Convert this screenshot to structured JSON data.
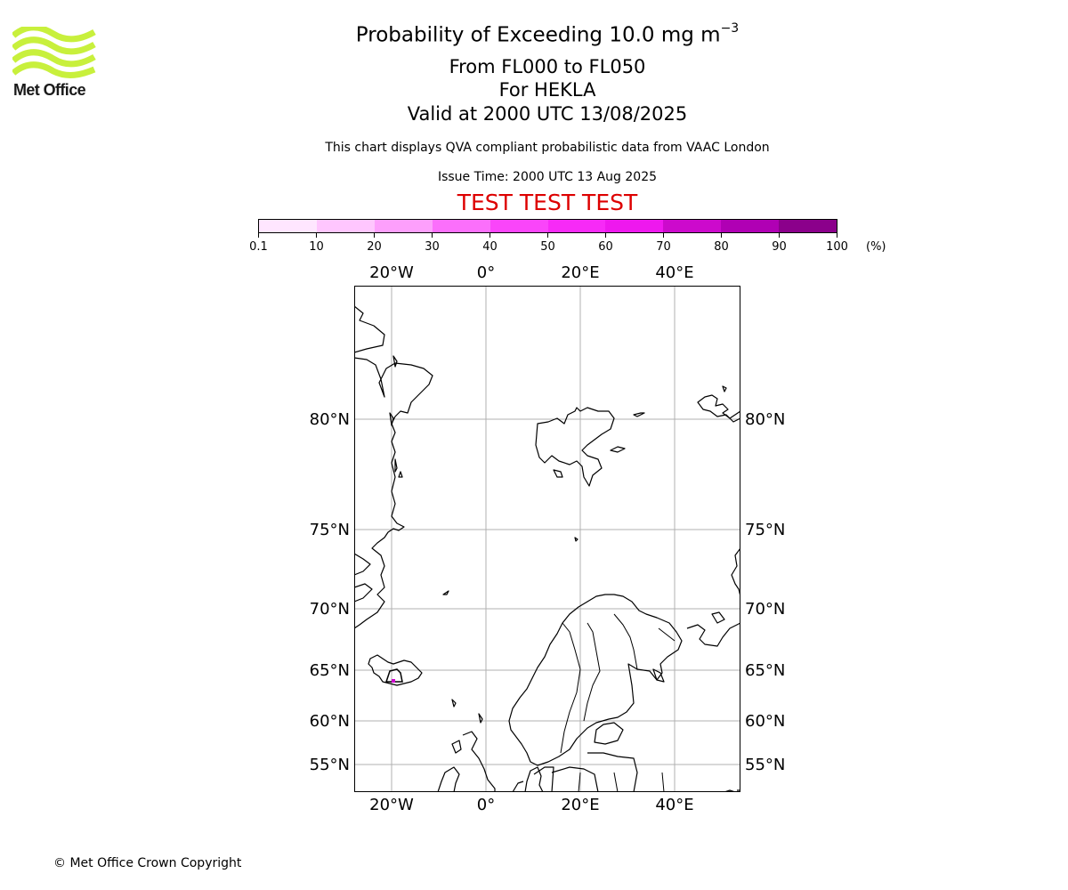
{
  "logo": {
    "text": "Met Office",
    "color": "#c8f03c"
  },
  "title": {
    "main": "Probability of Exceeding 10.0 mg m",
    "superscript": "−3",
    "levels": "From FL000 to FL050",
    "volcano": "For HEKLA",
    "valid": "Valid at 2000 UTC 13/08/2025",
    "note": "This chart displays QVA compliant probabilistic data from VAAC London",
    "issue": "Issue Time: 2000 UTC 13 Aug 2025",
    "test": "TEST TEST TEST"
  },
  "colorbar": {
    "unit": "(%)",
    "ticks": [
      "0.1",
      "10",
      "20",
      "30",
      "40",
      "50",
      "60",
      "70",
      "80",
      "90",
      "100"
    ],
    "colors": [
      "#ffe6ff",
      "#ffc6fe",
      "#fd9ffc",
      "#fb6ffb",
      "#fa45fa",
      "#f72af7",
      "#ee18ee",
      "#cc0acc",
      "#b000b4",
      "#8b008b",
      "#650063"
    ]
  },
  "map": {
    "lon_labels": [
      "20°W",
      "0°",
      "20°E",
      "40°E"
    ],
    "lat_labels": [
      "80°N",
      "75°N",
      "70°N",
      "65°N",
      "60°N",
      "55°N"
    ],
    "gridline_color": "#b0b0b0",
    "plume_color": "#cc00cc"
  },
  "footer": {
    "copyright": "© Met Office Crown Copyright"
  }
}
